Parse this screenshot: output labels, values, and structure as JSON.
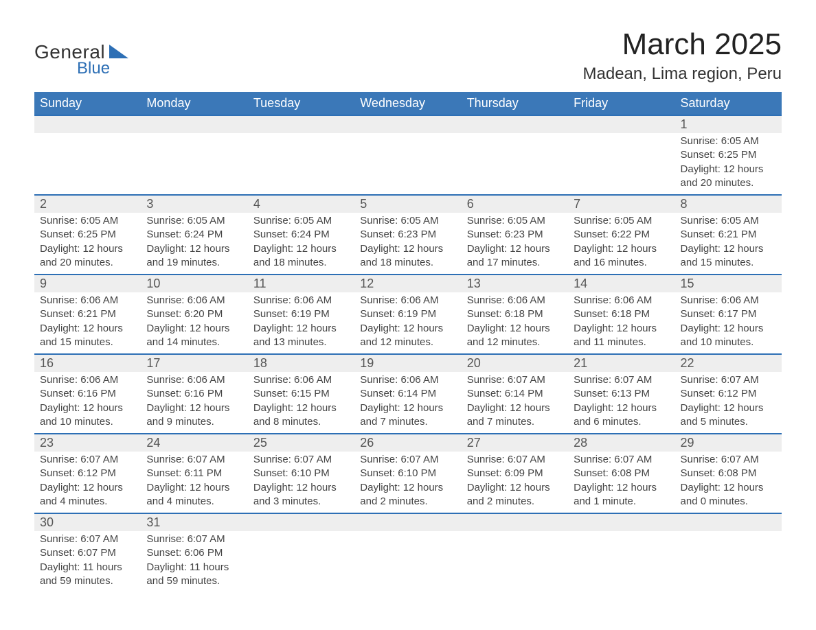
{
  "logo": {
    "line1": "General",
    "line2": "Blue"
  },
  "title": "March 2025",
  "location": "Madean, Lima region, Peru",
  "colors": {
    "header_bg": "#3b78b8",
    "header_text": "#ffffff",
    "row_divider": "#2d6fb5",
    "daynum_bg": "#eeeeee",
    "text": "#444444",
    "title_text": "#222222",
    "logo_blue": "#2d6fb5"
  },
  "columns": [
    "Sunday",
    "Monday",
    "Tuesday",
    "Wednesday",
    "Thursday",
    "Friday",
    "Saturday"
  ],
  "weeks": [
    [
      null,
      null,
      null,
      null,
      null,
      null,
      {
        "d": "1",
        "sr": "Sunrise: 6:05 AM",
        "ss": "Sunset: 6:25 PM",
        "dl1": "Daylight: 12 hours",
        "dl2": "and 20 minutes."
      }
    ],
    [
      {
        "d": "2",
        "sr": "Sunrise: 6:05 AM",
        "ss": "Sunset: 6:25 PM",
        "dl1": "Daylight: 12 hours",
        "dl2": "and 20 minutes."
      },
      {
        "d": "3",
        "sr": "Sunrise: 6:05 AM",
        "ss": "Sunset: 6:24 PM",
        "dl1": "Daylight: 12 hours",
        "dl2": "and 19 minutes."
      },
      {
        "d": "4",
        "sr": "Sunrise: 6:05 AM",
        "ss": "Sunset: 6:24 PM",
        "dl1": "Daylight: 12 hours",
        "dl2": "and 18 minutes."
      },
      {
        "d": "5",
        "sr": "Sunrise: 6:05 AM",
        "ss": "Sunset: 6:23 PM",
        "dl1": "Daylight: 12 hours",
        "dl2": "and 18 minutes."
      },
      {
        "d": "6",
        "sr": "Sunrise: 6:05 AM",
        "ss": "Sunset: 6:23 PM",
        "dl1": "Daylight: 12 hours",
        "dl2": "and 17 minutes."
      },
      {
        "d": "7",
        "sr": "Sunrise: 6:05 AM",
        "ss": "Sunset: 6:22 PM",
        "dl1": "Daylight: 12 hours",
        "dl2": "and 16 minutes."
      },
      {
        "d": "8",
        "sr": "Sunrise: 6:05 AM",
        "ss": "Sunset: 6:21 PM",
        "dl1": "Daylight: 12 hours",
        "dl2": "and 15 minutes."
      }
    ],
    [
      {
        "d": "9",
        "sr": "Sunrise: 6:06 AM",
        "ss": "Sunset: 6:21 PM",
        "dl1": "Daylight: 12 hours",
        "dl2": "and 15 minutes."
      },
      {
        "d": "10",
        "sr": "Sunrise: 6:06 AM",
        "ss": "Sunset: 6:20 PM",
        "dl1": "Daylight: 12 hours",
        "dl2": "and 14 minutes."
      },
      {
        "d": "11",
        "sr": "Sunrise: 6:06 AM",
        "ss": "Sunset: 6:19 PM",
        "dl1": "Daylight: 12 hours",
        "dl2": "and 13 minutes."
      },
      {
        "d": "12",
        "sr": "Sunrise: 6:06 AM",
        "ss": "Sunset: 6:19 PM",
        "dl1": "Daylight: 12 hours",
        "dl2": "and 12 minutes."
      },
      {
        "d": "13",
        "sr": "Sunrise: 6:06 AM",
        "ss": "Sunset: 6:18 PM",
        "dl1": "Daylight: 12 hours",
        "dl2": "and 12 minutes."
      },
      {
        "d": "14",
        "sr": "Sunrise: 6:06 AM",
        "ss": "Sunset: 6:18 PM",
        "dl1": "Daylight: 12 hours",
        "dl2": "and 11 minutes."
      },
      {
        "d": "15",
        "sr": "Sunrise: 6:06 AM",
        "ss": "Sunset: 6:17 PM",
        "dl1": "Daylight: 12 hours",
        "dl2": "and 10 minutes."
      }
    ],
    [
      {
        "d": "16",
        "sr": "Sunrise: 6:06 AM",
        "ss": "Sunset: 6:16 PM",
        "dl1": "Daylight: 12 hours",
        "dl2": "and 10 minutes."
      },
      {
        "d": "17",
        "sr": "Sunrise: 6:06 AM",
        "ss": "Sunset: 6:16 PM",
        "dl1": "Daylight: 12 hours",
        "dl2": "and 9 minutes."
      },
      {
        "d": "18",
        "sr": "Sunrise: 6:06 AM",
        "ss": "Sunset: 6:15 PM",
        "dl1": "Daylight: 12 hours",
        "dl2": "and 8 minutes."
      },
      {
        "d": "19",
        "sr": "Sunrise: 6:06 AM",
        "ss": "Sunset: 6:14 PM",
        "dl1": "Daylight: 12 hours",
        "dl2": "and 7 minutes."
      },
      {
        "d": "20",
        "sr": "Sunrise: 6:07 AM",
        "ss": "Sunset: 6:14 PM",
        "dl1": "Daylight: 12 hours",
        "dl2": "and 7 minutes."
      },
      {
        "d": "21",
        "sr": "Sunrise: 6:07 AM",
        "ss": "Sunset: 6:13 PM",
        "dl1": "Daylight: 12 hours",
        "dl2": "and 6 minutes."
      },
      {
        "d": "22",
        "sr": "Sunrise: 6:07 AM",
        "ss": "Sunset: 6:12 PM",
        "dl1": "Daylight: 12 hours",
        "dl2": "and 5 minutes."
      }
    ],
    [
      {
        "d": "23",
        "sr": "Sunrise: 6:07 AM",
        "ss": "Sunset: 6:12 PM",
        "dl1": "Daylight: 12 hours",
        "dl2": "and 4 minutes."
      },
      {
        "d": "24",
        "sr": "Sunrise: 6:07 AM",
        "ss": "Sunset: 6:11 PM",
        "dl1": "Daylight: 12 hours",
        "dl2": "and 4 minutes."
      },
      {
        "d": "25",
        "sr": "Sunrise: 6:07 AM",
        "ss": "Sunset: 6:10 PM",
        "dl1": "Daylight: 12 hours",
        "dl2": "and 3 minutes."
      },
      {
        "d": "26",
        "sr": "Sunrise: 6:07 AM",
        "ss": "Sunset: 6:10 PM",
        "dl1": "Daylight: 12 hours",
        "dl2": "and 2 minutes."
      },
      {
        "d": "27",
        "sr": "Sunrise: 6:07 AM",
        "ss": "Sunset: 6:09 PM",
        "dl1": "Daylight: 12 hours",
        "dl2": "and 2 minutes."
      },
      {
        "d": "28",
        "sr": "Sunrise: 6:07 AM",
        "ss": "Sunset: 6:08 PM",
        "dl1": "Daylight: 12 hours",
        "dl2": "and 1 minute."
      },
      {
        "d": "29",
        "sr": "Sunrise: 6:07 AM",
        "ss": "Sunset: 6:08 PM",
        "dl1": "Daylight: 12 hours",
        "dl2": "and 0 minutes."
      }
    ],
    [
      {
        "d": "30",
        "sr": "Sunrise: 6:07 AM",
        "ss": "Sunset: 6:07 PM",
        "dl1": "Daylight: 11 hours",
        "dl2": "and 59 minutes."
      },
      {
        "d": "31",
        "sr": "Sunrise: 6:07 AM",
        "ss": "Sunset: 6:06 PM",
        "dl1": "Daylight: 11 hours",
        "dl2": "and 59 minutes."
      },
      null,
      null,
      null,
      null,
      null
    ]
  ]
}
